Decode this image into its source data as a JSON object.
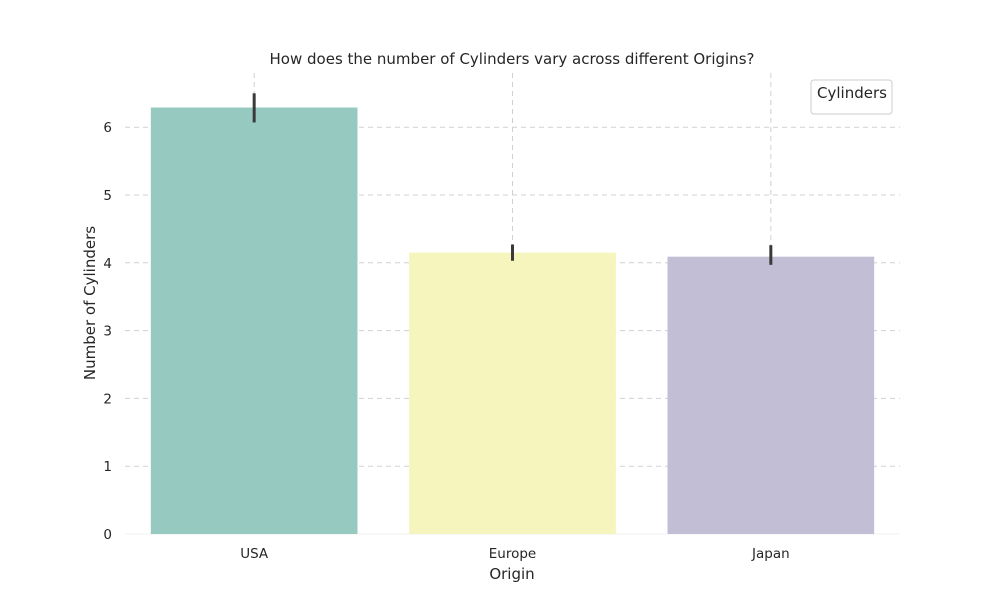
{
  "chart_data": {
    "type": "bar",
    "title": "How does the number of Cylinders vary across different Origins?",
    "xlabel": "Origin",
    "ylabel": "Number of Cylinders",
    "categories": [
      "USA",
      "Europe",
      "Japan"
    ],
    "values": [
      6.29,
      4.15,
      4.09
    ],
    "error_low": [
      6.07,
      4.03,
      3.97
    ],
    "error_high": [
      6.5,
      4.27,
      4.26
    ],
    "colors": [
      "#96c9bf",
      "#f5f5bd",
      "#c1bed6"
    ],
    "error_color": "#3a3a3a",
    "ylim": [
      0,
      6.8
    ],
    "yticks": [
      0,
      1,
      2,
      3,
      4,
      5,
      6
    ],
    "grid": true,
    "legend": {
      "title": "Cylinders",
      "placement": "top-right"
    }
  }
}
